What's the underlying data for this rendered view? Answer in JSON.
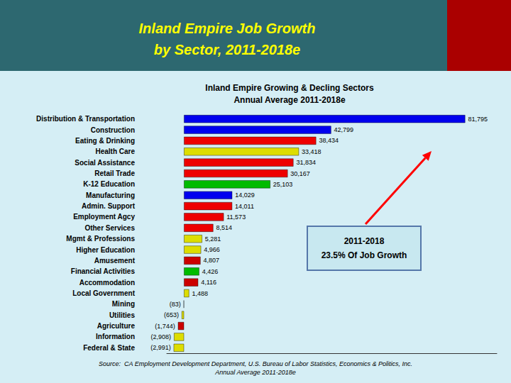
{
  "chart_data": {
    "type": "bar",
    "orientation": "horizontal",
    "title": "Inland Empire Job Growth\nby Sector, 2011-2018e",
    "subtitle": "Inland Empire Growing & Decling Sectors\nAnnual Average 2011-2018e",
    "annotations": [
      "2011-2018\n23.5% Of Job Growth",
      "Source:  CA Employment Development Department, U.S. Bureau of Labor Statistics, Economics & Politics, Inc.\nAnnual Average 2011-2018e"
    ],
    "categories": [
      "Distribution & Transportation",
      "Construction",
      "Eating & Drinking",
      "Health Care",
      "Social Assistance",
      "Retail Trade",
      "K-12 Education",
      "Manufacturing",
      "Admin. Support",
      "Employment Agcy",
      "Other Services",
      "Mgmt & Professions",
      "Higher Education",
      "Amusement",
      "Financial Activities",
      "Accommodation",
      "Local Government",
      "Mining",
      "Utilities",
      "Agriculture",
      "Information",
      "Federal & State"
    ],
    "values": [
      81795,
      42799,
      38434,
      33418,
      31834,
      30167,
      25103,
      14029,
      14011,
      11573,
      8514,
      5281,
      4966,
      4807,
      4426,
      4116,
      1488,
      -83,
      -653,
      -1744,
      -2908,
      -2991
    ],
    "value_labels": [
      "81,795",
      "42,799",
      "38,434",
      "33,418",
      "31,834",
      "30,167",
      "25,103",
      "14,029",
      "14,011",
      "11,573",
      "8,514",
      "5,281",
      "4,966",
      "4,807",
      "4,426",
      "4,116",
      "1,488",
      "(83)",
      "(653)",
      "(1,744)",
      "(2,908)",
      "(2,991)"
    ],
    "colors": [
      "#0000EE",
      "#0000EE",
      "#EE0000",
      "#DDDD00",
      "#EE0000",
      "#EE0000",
      "#00BB00",
      "#0000EE",
      "#EE0000",
      "#EE0000",
      "#EE0000",
      "#DDDD00",
      "#DDDD00",
      "#CC0000",
      "#00BB00",
      "#CC0000",
      "#DDDD00",
      "#CC0000",
      "#DDDD00",
      "#CC0000",
      "#DDDD00",
      "#DDDD00"
    ],
    "xlim": [
      -5000,
      91000
    ],
    "data_labels": true,
    "tick_labels": false,
    "grid": false
  }
}
